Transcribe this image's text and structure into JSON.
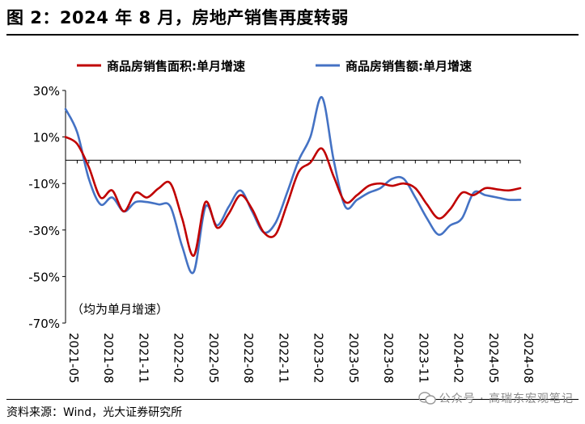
{
  "figure": {
    "title": "图 2：2024 年 8 月，房地产销售再度转弱",
    "source": "资料来源：Wind，光大证券研究所",
    "watermark": "公众号 · 高瑞东宏观笔记",
    "note": "（均为单月增速）"
  },
  "chart_data": {
    "type": "line",
    "title": "",
    "xlabel": "",
    "ylabel": "",
    "ylim": [
      -70,
      30
    ],
    "y_ticks": [
      30,
      10,
      -10,
      -30,
      -50,
      -70
    ],
    "y_tick_labels": [
      "30%",
      "10%",
      "-10%",
      "-30%",
      "-50%",
      "-70%"
    ],
    "x_tick_labels": [
      "2021-05",
      "2021-08",
      "2021-11",
      "2022-02",
      "2022-05",
      "2022-08",
      "2022-11",
      "2023-02",
      "2023-05",
      "2023-08",
      "2023-11",
      "2024-02",
      "2024-05",
      "2024-08"
    ],
    "x": [
      "2021-05",
      "2021-06",
      "2021-07",
      "2021-08",
      "2021-09",
      "2021-10",
      "2021-11",
      "2021-12",
      "2022-01",
      "2022-02",
      "2022-03",
      "2022-04",
      "2022-05",
      "2022-06",
      "2022-07",
      "2022-08",
      "2022-09",
      "2022-10",
      "2022-11",
      "2022-12",
      "2023-01",
      "2023-02",
      "2023-03",
      "2023-04",
      "2023-05",
      "2023-06",
      "2023-07",
      "2023-08",
      "2023-09",
      "2023-10",
      "2023-11",
      "2023-12",
      "2024-01",
      "2024-02",
      "2024-03",
      "2024-04",
      "2024-05",
      "2024-06",
      "2024-07",
      "2024-08"
    ],
    "legend_position": "top",
    "grid": false,
    "zero_line": true,
    "series": [
      {
        "name": "商品房销售面积:单月增速",
        "color": "#c00000",
        "values": [
          10,
          7,
          -3,
          -16,
          -13,
          -22,
          -14,
          -16,
          -12,
          -10,
          -25,
          -41,
          -18,
          -29,
          -23,
          -15,
          -21,
          -31,
          -32,
          -19,
          -5,
          -1,
          5,
          -7,
          -18,
          -15,
          -11,
          -10,
          -11,
          -10,
          -12,
          -19,
          -25,
          -21,
          -14,
          -15,
          -12,
          -12.5,
          -13,
          -12
        ]
      },
      {
        "name": "商品房销售额:单月增速",
        "color": "#4472c4",
        "values": [
          22,
          12,
          -8,
          -19,
          -16,
          -22,
          -18,
          -18,
          -19,
          -20,
          -37,
          -48,
          -20,
          -28,
          -20,
          -13,
          -22,
          -31,
          -27,
          -14,
          0,
          10,
          27,
          0,
          -20,
          -17,
          -14,
          -12,
          -8,
          -8,
          -16,
          -25,
          -32,
          -28,
          -25,
          -14,
          -15,
          -16,
          -17,
          -17
        ]
      }
    ]
  }
}
